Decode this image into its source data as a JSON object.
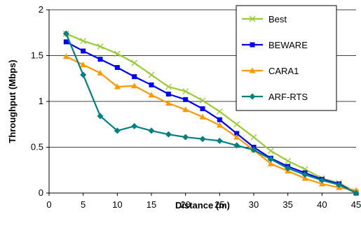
{
  "chart_data": {
    "type": "line",
    "xlabel": "Distance (m)",
    "ylabel": "Throughput (Mbps)",
    "xlim": [
      0,
      45
    ],
    "ylim": [
      0,
      2
    ],
    "xticks": [
      "0",
      "5",
      "10",
      "15",
      "20",
      "25",
      "30",
      "35",
      "40",
      "45"
    ],
    "yticks": [
      "0",
      "0.5",
      "1",
      "1.5",
      "2"
    ],
    "grid": "horizontal",
    "legend": "top-right",
    "x": [
      2.5,
      5,
      7.5,
      10,
      12.5,
      15,
      17.5,
      20,
      22.5,
      25,
      27.5,
      30,
      32.5,
      35,
      37.5,
      40,
      42.5,
      45
    ],
    "series": [
      {
        "name": "Best",
        "color": "#99cc33",
        "marker": "x",
        "values": [
          1.74,
          1.66,
          1.6,
          1.52,
          1.42,
          1.29,
          1.16,
          1.11,
          1.01,
          0.89,
          0.75,
          0.61,
          0.46,
          0.35,
          0.26,
          0.16,
          0.11,
          0.01
        ]
      },
      {
        "name": "BEWARE",
        "color": "#0000ff",
        "marker": "square",
        "values": [
          1.65,
          1.55,
          1.46,
          1.37,
          1.27,
          1.18,
          1.08,
          1.02,
          0.92,
          0.8,
          0.65,
          0.5,
          0.38,
          0.29,
          0.22,
          0.15,
          0.1,
          0.0
        ]
      },
      {
        "name": "CARA1",
        "color": "#ff9900",
        "marker": "triangle",
        "values": [
          1.49,
          1.4,
          1.31,
          1.16,
          1.17,
          1.07,
          0.98,
          0.91,
          0.83,
          0.74,
          0.61,
          0.47,
          0.32,
          0.24,
          0.16,
          0.1,
          0.06,
          0.03
        ]
      },
      {
        "name": "ARF-RTS",
        "color": "#008080",
        "marker": "diamond",
        "values": [
          1.74,
          1.29,
          0.84,
          0.68,
          0.73,
          0.68,
          0.64,
          0.61,
          0.59,
          0.57,
          0.52,
          0.47,
          0.37,
          0.27,
          0.2,
          0.14,
          0.09,
          0.0
        ]
      }
    ]
  }
}
